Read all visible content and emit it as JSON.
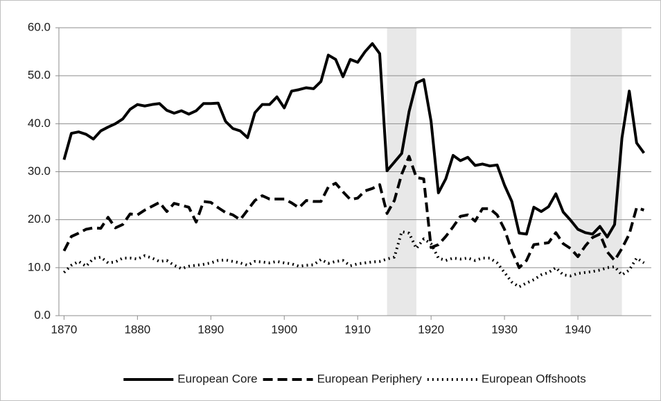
{
  "chart_data": {
    "type": "line",
    "x": [
      1870,
      1871,
      1872,
      1873,
      1874,
      1875,
      1876,
      1877,
      1878,
      1879,
      1880,
      1881,
      1882,
      1883,
      1884,
      1885,
      1886,
      1887,
      1888,
      1889,
      1890,
      1891,
      1892,
      1893,
      1894,
      1895,
      1896,
      1897,
      1898,
      1899,
      1900,
      1901,
      1902,
      1903,
      1904,
      1905,
      1906,
      1907,
      1908,
      1909,
      1910,
      1911,
      1912,
      1913,
      1914,
      1915,
      1916,
      1917,
      1918,
      1919,
      1920,
      1921,
      1922,
      1923,
      1924,
      1925,
      1926,
      1927,
      1928,
      1929,
      1930,
      1931,
      1932,
      1933,
      1934,
      1935,
      1936,
      1937,
      1938,
      1939,
      1940,
      1941,
      1942,
      1943,
      1944,
      1945,
      1946,
      1947,
      1948,
      1949
    ],
    "series": [
      {
        "name": "European Core",
        "color": "#000000",
        "dash": "solid",
        "values": [
          32.5,
          38,
          38.3,
          37.8,
          36.8,
          38.5,
          39.3,
          40,
          41,
          43,
          44,
          43.7,
          44,
          44.2,
          42.8,
          42.2,
          42.7,
          42,
          42.7,
          44.2,
          44.2,
          44.3,
          40.5,
          39,
          38.5,
          37.1,
          42.3,
          44,
          44,
          45.6,
          43.3,
          46.8,
          47.1,
          47.5,
          47.3,
          48.8,
          54.3,
          53.4,
          49.8,
          53.4,
          52.8,
          55,
          56.7,
          54.6,
          30.2,
          32,
          33.8,
          42.5,
          48.5,
          49.2,
          40.5,
          25.6,
          28.5,
          33.4,
          32.3,
          33,
          31.3,
          31.6,
          31.2,
          31.4,
          27.2,
          23.8,
          17.2,
          17,
          22.6,
          21.7,
          22.7,
          25.4,
          21.6,
          19.9,
          18,
          17.3,
          17,
          18.6,
          16.4,
          19,
          37,
          46.8,
          36,
          33.9
        ]
      },
      {
        "name": "European Periphery",
        "color": "#000000",
        "dash": "dashed",
        "values": [
          13.5,
          16.5,
          17.2,
          18,
          18.3,
          18.2,
          20.5,
          18.3,
          19,
          21.2,
          21,
          22,
          22.8,
          23.6,
          21.7,
          23.4,
          23,
          22.6,
          19.5,
          23.8,
          23.6,
          22.5,
          21.5,
          21,
          20,
          22,
          24,
          25,
          24.3,
          24.3,
          24.3,
          23.5,
          22.5,
          24,
          23.8,
          23.8,
          26.8,
          27.6,
          25.8,
          24.2,
          24.5,
          26,
          26.5,
          27.3,
          21.3,
          24,
          29.5,
          33.2,
          28.8,
          28.5,
          14.2,
          14.8,
          16.5,
          18.5,
          20.7,
          21,
          19.7,
          22.3,
          22.3,
          21,
          18,
          13.5,
          10,
          11.5,
          14.8,
          15,
          15.2,
          17.3,
          15,
          14,
          12.3,
          14.5,
          16.3,
          17,
          13.3,
          11.5,
          14,
          17,
          22.5,
          22
        ]
      },
      {
        "name": "European Offshoots",
        "color": "#000000",
        "dash": "dotted",
        "values": [
          9,
          10.5,
          11.3,
          10.3,
          11.9,
          12.2,
          11,
          11.2,
          12,
          12,
          11.8,
          12.5,
          12,
          11.3,
          11.5,
          10.5,
          9.8,
          10.3,
          10.5,
          10.7,
          11,
          11.5,
          11.6,
          11.3,
          11,
          10.5,
          11.3,
          11.2,
          11,
          11.3,
          11,
          10.8,
          10.3,
          10.5,
          10.6,
          11.7,
          10.9,
          11.3,
          11.5,
          10.4,
          10.8,
          11,
          11.2,
          11.3,
          11.8,
          12.2,
          17.5,
          17.2,
          14,
          16,
          15,
          12,
          11.5,
          12,
          11.8,
          12,
          11.5,
          12,
          12,
          11,
          9,
          7,
          6,
          6.8,
          7.5,
          8.5,
          9,
          10,
          8.5,
          8.3,
          8.8,
          9,
          9.2,
          9.5,
          10,
          10.2,
          8.5,
          9.5,
          12,
          11
        ]
      }
    ],
    "xlim": [
      1869.3,
      1950
    ],
    "xticks": [
      1870,
      1880,
      1890,
      1900,
      1910,
      1920,
      1930,
      1940
    ],
    "ylim": [
      0,
      60
    ],
    "yticks": [
      {
        "value": 0,
        "label": "0.0"
      },
      {
        "value": 10,
        "label": "10.0"
      },
      {
        "value": 20,
        "label": "20.0"
      },
      {
        "value": 30,
        "label": "30.0"
      },
      {
        "value": 40,
        "label": "40.0"
      },
      {
        "value": 50,
        "label": "50.0"
      },
      {
        "value": 60,
        "label": "60.0"
      }
    ],
    "grid": true,
    "shaded_regions": [
      [
        1914,
        1918
      ],
      [
        1939,
        1946
      ]
    ],
    "shade_color": "#e8e8e8",
    "legend": "bottom"
  }
}
